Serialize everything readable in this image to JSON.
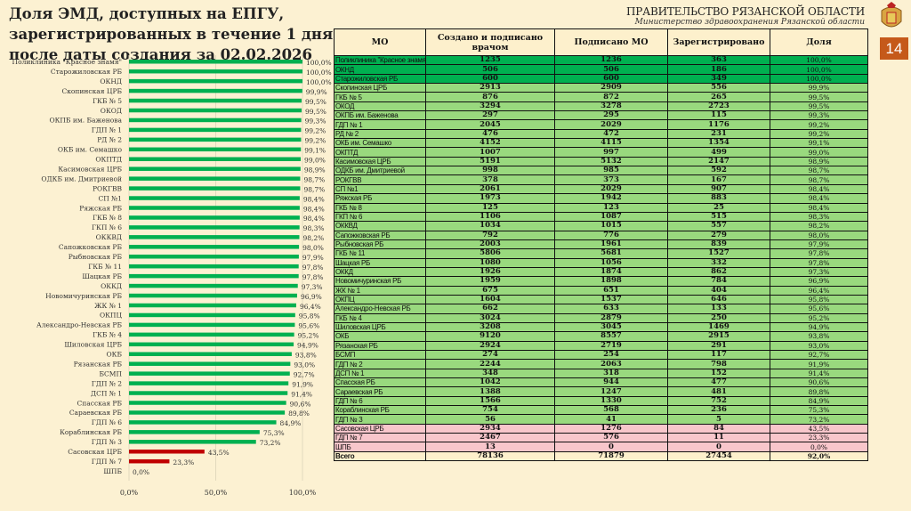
{
  "title": "Доля ЭМД, доступных на ЕПГУ, зарегистрированных в течение 1 дня после даты создания за 02.02.2026",
  "header": {
    "gov": "ПРАВИТЕЛЬСТВО РЯЗАНСКОЙ ОБЛАСТИ",
    "ministry": "Министерство здравоохранения Рязанской области",
    "page": "14"
  },
  "colors": {
    "dark_green": "#00b050",
    "light_green": "#99d97e",
    "pink": "#f8c6cb",
    "bar_green": "#00b050",
    "bar_red": "#c00000",
    "page_box": "#c5591a"
  },
  "table": {
    "columns": [
      "МО",
      "Создано и подписано врачом",
      "Подписано МО",
      "Зарегистрировано",
      "Доля"
    ],
    "rows": [
      [
        "Поликлиника \"Красное знамя\"",
        "1235",
        "1236",
        "363",
        "100,0%",
        "dark"
      ],
      [
        "ОКНД",
        "506",
        "506",
        "186",
        "100,0%",
        "dark"
      ],
      [
        "Старожиловская РБ",
        "600",
        "600",
        "349",
        "100,0%",
        "dark"
      ],
      [
        "Скопинская ЦРБ",
        "2913",
        "2909",
        "556",
        "99,9%",
        "light"
      ],
      [
        "ГКБ № 5",
        "876",
        "872",
        "265",
        "99,5%",
        "light"
      ],
      [
        "ОКОД",
        "3294",
        "3278",
        "2723",
        "99,5%",
        "light"
      ],
      [
        "ОКПБ им. Баженова",
        "297",
        "295",
        "115",
        "99,3%",
        "light"
      ],
      [
        "ГДП № 1",
        "2045",
        "2029",
        "1176",
        "99,2%",
        "light"
      ],
      [
        "РД № 2",
        "476",
        "472",
        "231",
        "99,2%",
        "light"
      ],
      [
        "ОКБ им. Семашко",
        "4152",
        "4115",
        "1354",
        "99,1%",
        "light"
      ],
      [
        "ОКПТД",
        "1007",
        "997",
        "499",
        "99,0%",
        "light"
      ],
      [
        "Касимовская ЦРБ",
        "5191",
        "5132",
        "2147",
        "98,9%",
        "light"
      ],
      [
        "ОДКБ им. Дмитриевой",
        "998",
        "985",
        "592",
        "98,7%",
        "light"
      ],
      [
        "РОКГВВ",
        "378",
        "373",
        "167",
        "98,7%",
        "light"
      ],
      [
        "СП №1",
        "2061",
        "2029",
        "907",
        "98,4%",
        "light"
      ],
      [
        "Ряжская РБ",
        "1973",
        "1942",
        "883",
        "98,4%",
        "light"
      ],
      [
        "ГКБ № 8",
        "125",
        "123",
        "25",
        "98,4%",
        "light"
      ],
      [
        "ГКП № 6",
        "1106",
        "1087",
        "515",
        "98,3%",
        "light"
      ],
      [
        "ОККВД",
        "1034",
        "1015",
        "557",
        "98,2%",
        "light"
      ],
      [
        "Сапожковская РБ",
        "792",
        "776",
        "279",
        "98,0%",
        "light"
      ],
      [
        "Рыбновская РБ",
        "2003",
        "1961",
        "839",
        "97,9%",
        "light"
      ],
      [
        "ГКБ № 11",
        "5806",
        "5681",
        "1527",
        "97,8%",
        "light"
      ],
      [
        "Шацкая РБ",
        "1080",
        "1056",
        "332",
        "97,8%",
        "light"
      ],
      [
        "ОККД",
        "1926",
        "1874",
        "862",
        "97,3%",
        "light"
      ],
      [
        "Новомичуринская РБ",
        "1959",
        "1898",
        "784",
        "96,9%",
        "light"
      ],
      [
        "ЖК № 1",
        "675",
        "651",
        "404",
        "96,4%",
        "light"
      ],
      [
        "ОКПЦ",
        "1604",
        "1537",
        "646",
        "95,8%",
        "light"
      ],
      [
        "Александро-Невская РБ",
        "662",
        "633",
        "133",
        "95,6%",
        "light"
      ],
      [
        "ГКБ № 4",
        "3024",
        "2879",
        "250",
        "95,2%",
        "light"
      ],
      [
        "Шиловская ЦРБ",
        "3208",
        "3045",
        "1469",
        "94,9%",
        "light"
      ],
      [
        "ОКБ",
        "9120",
        "8557",
        "2915",
        "93,8%",
        "light"
      ],
      [
        "Рязанская РБ",
        "2924",
        "2719",
        "291",
        "93,0%",
        "light"
      ],
      [
        "БСМП",
        "274",
        "254",
        "117",
        "92,7%",
        "light"
      ],
      [
        "ГДП № 2",
        "2244",
        "2063",
        "798",
        "91,9%",
        "light"
      ],
      [
        "ДСП № 1",
        "348",
        "318",
        "152",
        "91,4%",
        "light"
      ],
      [
        "Спасская РБ",
        "1042",
        "944",
        "477",
        "90,6%",
        "light"
      ],
      [
        "Сараевская РБ",
        "1388",
        "1247",
        "481",
        "89,8%",
        "light"
      ],
      [
        "ГДП № 6",
        "1566",
        "1330",
        "752",
        "84,9%",
        "light"
      ],
      [
        "Кораблинская РБ",
        "754",
        "568",
        "236",
        "75,3%",
        "light"
      ],
      [
        "ГДП № 3",
        "56",
        "41",
        "5",
        "73,2%",
        "light"
      ],
      [
        "Сасовская ЦРБ",
        "2934",
        "1276",
        "84",
        "43,5%",
        "pink"
      ],
      [
        "ГДП № 7",
        "2467",
        "576",
        "11",
        "23,3%",
        "pink"
      ],
      [
        "ШПБ",
        "13",
        "0",
        "0",
        "0,0%",
        "pink"
      ]
    ],
    "total": [
      "Всего",
      "78136",
      "71879",
      "27454",
      "92,0%"
    ]
  },
  "chart_data": {
    "type": "bar",
    "orientation": "horizontal",
    "title": "",
    "xlabel": "",
    "ylabel": "",
    "xlim": [
      0,
      100
    ],
    "x_ticks": [
      "0,0%",
      "50,0%",
      "100,0%"
    ],
    "categories": [
      "Поликлиника \"Красное знамя\"",
      "Старожиловская РБ",
      "ОКНД",
      "Скопинская ЦРБ",
      "ГКБ № 5",
      "ОКОД",
      "ОКПБ им. Баженова",
      "ГДП № 1",
      "РД № 2",
      "ОКБ им. Семашко",
      "ОКПТД",
      "Касимовская ЦРБ",
      "ОДКБ им. Дмитриевой",
      "РОКГВВ",
      "СП №1",
      "Ряжская РБ",
      "ГКБ № 8",
      "ГКП № 6",
      "ОККВД",
      "Сапожковская РБ",
      "Рыбновская РБ",
      "ГКБ № 11",
      "Шацкая РБ",
      "ОККД",
      "Новомичуринская РБ",
      "ЖК № 1",
      "ОКПЦ",
      "Александро-Невская РБ",
      "ГКБ № 4",
      "Шиловская ЦРБ",
      "ОКБ",
      "Рязанская РБ",
      "БСМП",
      "ГДП № 2",
      "ДСП № 1",
      "Спасская РБ",
      "Сараевская РБ",
      "ГДП № 6",
      "Кораблинская РБ",
      "ГДП № 3",
      "Сасовская ЦРБ",
      "ГДП № 7",
      "ШПБ"
    ],
    "values": [
      100,
      100,
      100,
      99.9,
      99.5,
      99.5,
      99.3,
      99.2,
      99.2,
      99.1,
      99.0,
      98.9,
      98.7,
      98.7,
      98.4,
      98.4,
      98.4,
      98.3,
      98.2,
      98.0,
      97.9,
      97.8,
      97.8,
      97.3,
      96.9,
      96.4,
      95.8,
      95.6,
      95.2,
      94.9,
      93.8,
      93.0,
      92.7,
      91.9,
      91.4,
      90.6,
      89.8,
      84.9,
      75.3,
      73.2,
      43.5,
      23.3,
      0.0
    ],
    "labels": [
      "100,0%",
      "100,0%",
      "100,0%",
      "99,9%",
      "99,5%",
      "99,5%",
      "99,3%",
      "99,2%",
      "99,2%",
      "99,1%",
      "99,0%",
      "98,9%",
      "98,7%",
      "98,7%",
      "98,4%",
      "98,4%",
      "98,4%",
      "98,3%",
      "98,2%",
      "98,0%",
      "97,9%",
      "97,8%",
      "97,8%",
      "97,3%",
      "96,9%",
      "96,4%",
      "95,8%",
      "95,6%",
      "95,2%",
      "94,9%",
      "93,8%",
      "93,0%",
      "92,7%",
      "91,9%",
      "91,4%",
      "90,6%",
      "89,8%",
      "84,9%",
      "75,3%",
      "73,2%",
      "43,5%",
      "23,3%",
      "0,0%"
    ],
    "red_threshold": 50,
    "gridlines": true
  }
}
